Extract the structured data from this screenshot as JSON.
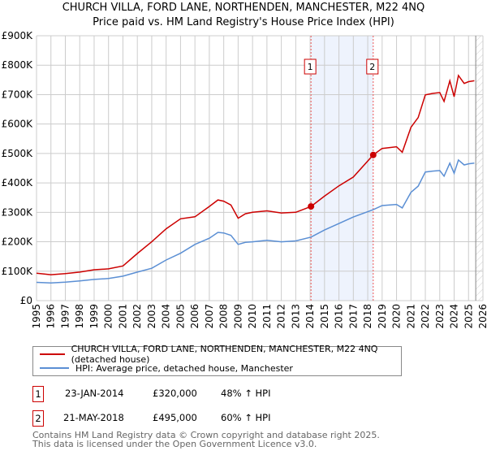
{
  "chart_data": {
    "type": "line",
    "title": "CHURCH VILLA, FORD LANE, NORTHENDEN, MANCHESTER, M22 4NQ",
    "subtitle": "Price paid vs. HM Land Registry's House Price Index (HPI)",
    "xlim": [
      1995,
      2026
    ],
    "ylim": [
      0,
      900000
    ],
    "grid": true,
    "y_ticks": [
      0,
      100000,
      200000,
      300000,
      400000,
      500000,
      600000,
      700000,
      800000,
      900000
    ],
    "y_tick_labels": [
      "£0",
      "£100K",
      "£200K",
      "£300K",
      "£400K",
      "£500K",
      "£600K",
      "£700K",
      "£800K",
      "£900K"
    ],
    "x_ticks": [
      "1995",
      "1996",
      "1997",
      "1998",
      "1999",
      "2000",
      "2001",
      "2002",
      "2003",
      "2004",
      "2005",
      "2006",
      "2007",
      "2008",
      "2009",
      "2010",
      "2011",
      "2012",
      "2013",
      "2014",
      "2015",
      "2016",
      "2017",
      "2018",
      "2019",
      "2020",
      "2021",
      "2022",
      "2023",
      "2024",
      "2025",
      "2026"
    ],
    "x": [
      1995,
      1996,
      1997,
      1998,
      1999,
      2000,
      2001,
      2002,
      2003,
      2004,
      2005,
      2006,
      2007,
      2007.6,
      2008,
      2008.5,
      2009,
      2009.5,
      2010,
      2011,
      2012,
      2013,
      2014.06,
      2015,
      2016,
      2017,
      2018.38,
      2019,
      2020,
      2020.4,
      2021,
      2021.5,
      2022,
      2022.5,
      2023,
      2023.3,
      2023.7,
      2024,
      2024.3,
      2024.7,
      2025,
      2025.4
    ],
    "series": [
      {
        "name": "CHURCH VILLA, FORD LANE, NORTHENDEN, MANCHESTER, M22 4NQ (detached house)",
        "color": "#cc0000",
        "values": [
          93000,
          88000,
          92000,
          97000,
          105000,
          108000,
          118000,
          160000,
          200000,
          244000,
          278000,
          285000,
          320000,
          342000,
          338000,
          325000,
          280000,
          295000,
          300000,
          305000,
          298000,
          300000,
          320000,
          355000,
          390000,
          420000,
          495000,
          517000,
          523000,
          504000,
          589000,
          622000,
          699000,
          704000,
          707000,
          677000,
          747000,
          693000,
          765000,
          738000,
          744000,
          747000
        ]
      },
      {
        "name": "HPI: Average price, detached house, Manchester",
        "color": "#5b8fd4",
        "values": [
          62000,
          60000,
          63000,
          67000,
          72000,
          75000,
          83000,
          97000,
          110000,
          138000,
          161000,
          191000,
          212000,
          232000,
          230000,
          222000,
          191000,
          198000,
          200000,
          205000,
          200000,
          203000,
          216000,
          240000,
          262000,
          284000,
          309000,
          323000,
          327000,
          315000,
          368000,
          389000,
          437000,
          440000,
          442000,
          423000,
          467000,
          433000,
          478000,
          461000,
          465000,
          467000
        ]
      }
    ],
    "sales": [
      {
        "label": "1",
        "x": 2014.06,
        "value": 320000
      },
      {
        "label": "2",
        "x": 2018.38,
        "value": 495000
      }
    ],
    "shaded_range": [
      2014.06,
      2018.38
    ],
    "future_hatch_from": 2025.5
  },
  "legend": {
    "property": "CHURCH VILLA, FORD LANE, NORTHENDEN, MANCHESTER, M22 4NQ (detached house)",
    "hpi": "HPI: Average price, detached house, Manchester"
  },
  "sales_table": [
    {
      "num": "1",
      "date": "23-JAN-2014",
      "price": "£320,000",
      "hpi": "48% ↑ HPI"
    },
    {
      "num": "2",
      "date": "21-MAY-2018",
      "price": "£495,000",
      "hpi": "60% ↑ HPI"
    }
  ],
  "footer": {
    "line1": "Contains HM Land Registry data © Crown copyright and database right 2025.",
    "line2": "This data is licensed under the Open Government Licence v3.0."
  }
}
